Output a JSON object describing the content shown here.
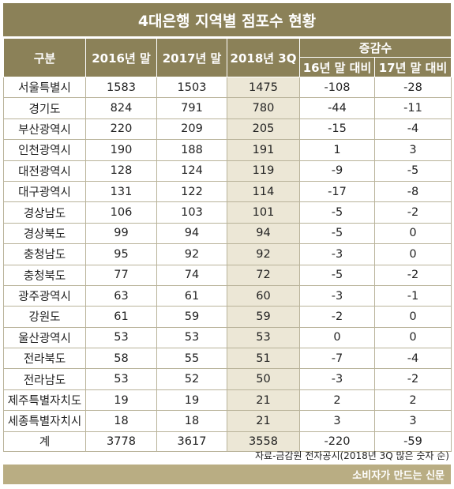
{
  "title": "4대은행 지역별 점포수 현황",
  "headers": {
    "region": "구분",
    "y2016": "2016년 말",
    "y2017": "2017년 말",
    "y2018": "2018년 3Q",
    "change": "증감수",
    "vs16": "16년 말 대비",
    "vs17": "17년 말 대비"
  },
  "rows": [
    {
      "region": "서울특별시",
      "y2016": "1583",
      "y2017": "1503",
      "y2018": "1475",
      "vs16": "-108",
      "vs17": "-28"
    },
    {
      "region": "경기도",
      "y2016": "824",
      "y2017": "791",
      "y2018": "780",
      "vs16": "-44",
      "vs17": "-11"
    },
    {
      "region": "부산광역시",
      "y2016": "220",
      "y2017": "209",
      "y2018": "205",
      "vs16": "-15",
      "vs17": "-4"
    },
    {
      "region": "인천광역시",
      "y2016": "190",
      "y2017": "188",
      "y2018": "191",
      "vs16": "1",
      "vs17": "3"
    },
    {
      "region": "대전광역시",
      "y2016": "128",
      "y2017": "124",
      "y2018": "119",
      "vs16": "-9",
      "vs17": "-5"
    },
    {
      "region": "대구광역시",
      "y2016": "131",
      "y2017": "122",
      "y2018": "114",
      "vs16": "-17",
      "vs17": "-8"
    },
    {
      "region": "경상남도",
      "y2016": "106",
      "y2017": "103",
      "y2018": "101",
      "vs16": "-5",
      "vs17": "-2"
    },
    {
      "region": "경상북도",
      "y2016": "99",
      "y2017": "94",
      "y2018": "94",
      "vs16": "-5",
      "vs17": "0"
    },
    {
      "region": "충청남도",
      "y2016": "95",
      "y2017": "92",
      "y2018": "92",
      "vs16": "-3",
      "vs17": "0"
    },
    {
      "region": "충청북도",
      "y2016": "77",
      "y2017": "74",
      "y2018": "72",
      "vs16": "-5",
      "vs17": "-2"
    },
    {
      "region": "광주광역시",
      "y2016": "63",
      "y2017": "61",
      "y2018": "60",
      "vs16": "-3",
      "vs17": "-1"
    },
    {
      "region": "강원도",
      "y2016": "61",
      "y2017": "59",
      "y2018": "59",
      "vs16": "-2",
      "vs17": "0"
    },
    {
      "region": "울산광역시",
      "y2016": "53",
      "y2017": "53",
      "y2018": "53",
      "vs16": "0",
      "vs17": "0"
    },
    {
      "region": "전라북도",
      "y2016": "58",
      "y2017": "55",
      "y2018": "51",
      "vs16": "-7",
      "vs17": "-4"
    },
    {
      "region": "전라남도",
      "y2016": "53",
      "y2017": "52",
      "y2018": "50",
      "vs16": "-3",
      "vs17": "-2"
    },
    {
      "region": "제주특별자치도",
      "y2016": "19",
      "y2017": "19",
      "y2018": "21",
      "vs16": "2",
      "vs17": "2"
    },
    {
      "region": "세종특별자치시",
      "y2016": "18",
      "y2017": "18",
      "y2018": "21",
      "vs16": "3",
      "vs17": "3"
    }
  ],
  "total": {
    "region": "계",
    "y2016": "3778",
    "y2017": "3617",
    "y2018": "3558",
    "vs16": "-220",
    "vs17": "-59"
  },
  "source": "자료-금감원 전자공시(2018년 3Q 많은 숫자 순)",
  "footer": "소비자가 만드는 신문",
  "colors": {
    "header": "#8b8158",
    "highlight": "#ece7d6",
    "footer": "#b9ad83"
  }
}
